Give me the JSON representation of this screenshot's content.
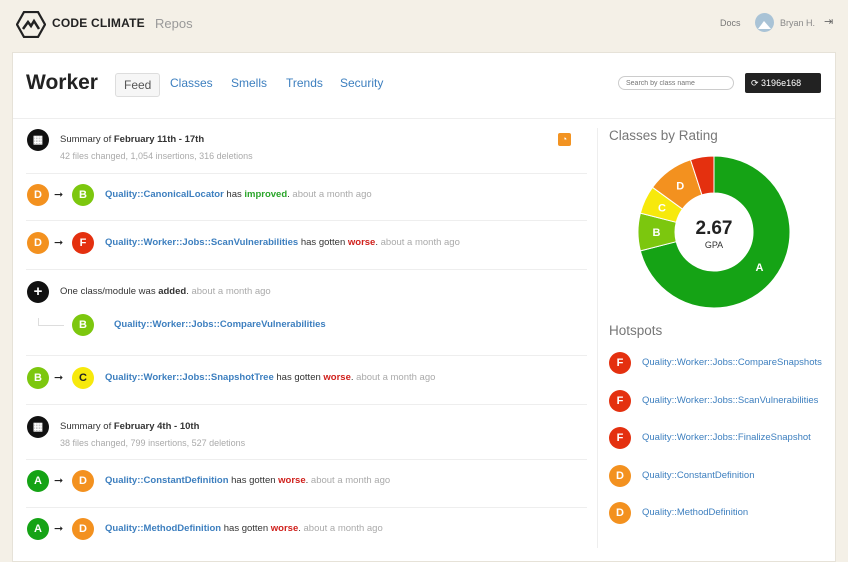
{
  "nav": {
    "brand": "CODE CLIMATE",
    "repos": "Repos",
    "docs": "Docs",
    "user": "Bryan H."
  },
  "header": {
    "title": "Worker",
    "tabs": [
      "Feed",
      "Classes",
      "Smells",
      "Trends",
      "Security"
    ],
    "active_tab": "Feed",
    "search_placeholder": "Search by class name",
    "commit": "3196e168"
  },
  "colors": {
    "A": "#15a315",
    "B": "#7cc70e",
    "C": "#f7e90c",
    "D": "#f3911f",
    "F": "#e4300f",
    "link": "#3d7fbf"
  },
  "feed": [
    {
      "type": "summary",
      "prefix": "Summary of ",
      "range": "February 11th - 17th",
      "stats": "42 files changed, 1,054 insertions, 316 deletions"
    },
    {
      "type": "change",
      "from": "D",
      "to": "B",
      "cls": "Quality::CanonicalLocator",
      "verb": " has ",
      "result": "improved",
      "ago": " about a month ago"
    },
    {
      "type": "change",
      "from": "D",
      "to": "F",
      "cls": "Quality::Worker::Jobs::ScanVulnerabilities",
      "verb": " has gotten ",
      "result": "worse",
      "ago": " about a month ago"
    },
    {
      "type": "added",
      "prefix": "One class/module was ",
      "word": "added",
      "ago": " about a month ago",
      "child_grade": "B",
      "child": "Quality::Worker::Jobs::CompareVulnerabilities"
    },
    {
      "type": "change",
      "from": "B",
      "to": "C",
      "cls": "Quality::Worker::Jobs::SnapshotTree",
      "verb": " has gotten ",
      "result": "worse",
      "ago": " about a month ago"
    },
    {
      "type": "summary",
      "prefix": "Summary of ",
      "range": "February 4th - 10th",
      "stats": "38 files changed, 799 insertions, 527 deletions"
    },
    {
      "type": "change",
      "from": "A",
      "to": "D",
      "cls": "Quality::ConstantDefinition",
      "verb": " has gotten ",
      "result": "worse",
      "ago": " about a month ago"
    },
    {
      "type": "change",
      "from": "A",
      "to": "D",
      "cls": "Quality::MethodDefinition",
      "verb": " has gotten ",
      "result": "worse",
      "ago": " about a month ago"
    }
  ],
  "sidebar": {
    "rating_title": "Classes by Rating",
    "hotspots_title": "Hotspots",
    "hotspots": [
      {
        "grade": "F",
        "name": "Quality::Worker::Jobs::CompareSnapshots"
      },
      {
        "grade": "F",
        "name": "Quality::Worker::Jobs::ScanVulnerabilities"
      },
      {
        "grade": "F",
        "name": "Quality::Worker::Jobs::FinalizeSnapshot"
      },
      {
        "grade": "D",
        "name": "Quality::ConstantDefinition"
      },
      {
        "grade": "D",
        "name": "Quality::MethodDefinition"
      }
    ]
  },
  "chart_data": {
    "type": "pie",
    "gpa": "2.67",
    "gpa_label": "GPA",
    "categories": [
      "A",
      "B",
      "C",
      "D",
      "F"
    ],
    "values": [
      0.71,
      0.08,
      0.06,
      0.1,
      0.05
    ]
  }
}
